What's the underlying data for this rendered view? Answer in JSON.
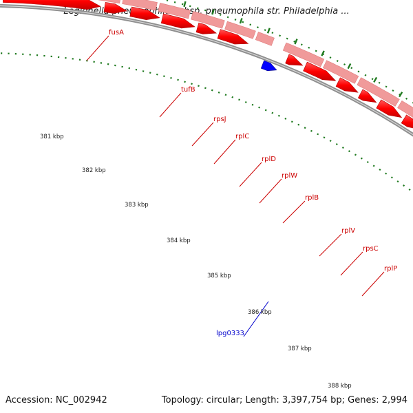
{
  "title": "Legionella pneumophila subsp. pneumophila str. Philadelphia ...",
  "footer": {
    "accession": "Accession: NC_002942",
    "topology": "Topology: circular; Length: 3,397,754 bp; Genes: 2,994"
  },
  "colors": {
    "gene_forward": "#ff0000",
    "gene_forward_light": "#f09a9a",
    "gene_selected": "#0000ff",
    "tick": "#1f7a1f",
    "backbone": "#8f8f8f",
    "label_forward": "#cc0000",
    "label_selected": "#0000cc"
  },
  "kbp_ticks": [
    "381 kbp",
    "382 kbp",
    "383 kbp",
    "384 kbp",
    "385 kbp",
    "386 kbp",
    "387 kbp",
    "388 kbp"
  ],
  "genes": [
    {
      "name": "fusA",
      "strand": "forward"
    },
    {
      "name": "tufB",
      "strand": "forward"
    },
    {
      "name": "rpsJ",
      "strand": "forward"
    },
    {
      "name": "rplC",
      "strand": "forward"
    },
    {
      "name": "rplD",
      "strand": "forward"
    },
    {
      "name": "rplW",
      "strand": "forward"
    },
    {
      "name": "rplB",
      "strand": "forward"
    },
    {
      "name": "rplV",
      "strand": "forward"
    },
    {
      "name": "rpsC",
      "strand": "forward"
    },
    {
      "name": "rplP",
      "strand": "forward"
    },
    {
      "name": "lpg0333",
      "strand": "selected"
    }
  ]
}
